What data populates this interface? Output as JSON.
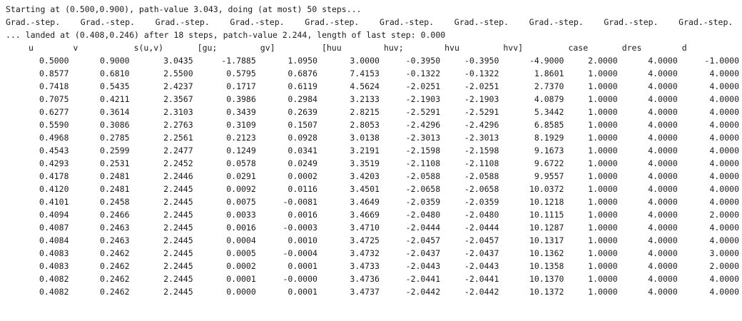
{
  "console": {
    "start_line": "Starting at (0.500,0.900), path-value 3.043, doing (at most) 50 steps...",
    "step_label": "Grad.-step.",
    "step_count": 10,
    "landed_line": "... landed at (0.408,0.246) after 18 steps, patch-value 2.244, length of last step: 0.000"
  },
  "table": {
    "headers": [
      "u",
      "v",
      "s(u,v)",
      "[gu;",
      "gv]",
      "[huu",
      "huv;",
      "hvu",
      "hvv]",
      "case",
      "dres",
      "d"
    ],
    "rows": [
      [
        "0.5000",
        "0.9000",
        "3.0435",
        "-1.7885",
        "1.0950",
        "3.0000",
        "-0.3950",
        "-0.3950",
        "-4.9000",
        "2.0000",
        "4.0000",
        "-1.0000"
      ],
      [
        "0.8577",
        "0.6810",
        "2.5500",
        "0.5795",
        "0.6876",
        "7.4153",
        "-0.1322",
        "-0.1322",
        "1.8601",
        "1.0000",
        "4.0000",
        "4.0000"
      ],
      [
        "0.7418",
        "0.5435",
        "2.4237",
        "0.1717",
        "0.6119",
        "4.5624",
        "-2.0251",
        "-2.0251",
        "2.7370",
        "1.0000",
        "4.0000",
        "4.0000"
      ],
      [
        "0.7075",
        "0.4211",
        "2.3567",
        "0.3986",
        "0.2984",
        "3.2133",
        "-2.1903",
        "-2.1903",
        "4.0879",
        "1.0000",
        "4.0000",
        "4.0000"
      ],
      [
        "0.6277",
        "0.3614",
        "2.3103",
        "0.3439",
        "0.2639",
        "2.8215",
        "-2.5291",
        "-2.5291",
        "5.3442",
        "1.0000",
        "4.0000",
        "4.0000"
      ],
      [
        "0.5590",
        "0.3086",
        "2.2763",
        "0.3109",
        "0.1507",
        "2.8053",
        "-2.4296",
        "-2.4296",
        "6.8585",
        "1.0000",
        "4.0000",
        "4.0000"
      ],
      [
        "0.4968",
        "0.2785",
        "2.2561",
        "0.2123",
        "0.0928",
        "3.0138",
        "-2.3013",
        "-2.3013",
        "8.1929",
        "1.0000",
        "4.0000",
        "4.0000"
      ],
      [
        "0.4543",
        "0.2599",
        "2.2477",
        "0.1249",
        "0.0341",
        "3.2191",
        "-2.1598",
        "-2.1598",
        "9.1673",
        "1.0000",
        "4.0000",
        "4.0000"
      ],
      [
        "0.4293",
        "0.2531",
        "2.2452",
        "0.0578",
        "0.0249",
        "3.3519",
        "-2.1108",
        "-2.1108",
        "9.6722",
        "1.0000",
        "4.0000",
        "4.0000"
      ],
      [
        "0.4178",
        "0.2481",
        "2.2446",
        "0.0291",
        "0.0002",
        "3.4203",
        "-2.0588",
        "-2.0588",
        "9.9557",
        "1.0000",
        "4.0000",
        "4.0000"
      ],
      [
        "0.4120",
        "0.2481",
        "2.2445",
        "0.0092",
        "0.0116",
        "3.4501",
        "-2.0658",
        "-2.0658",
        "10.0372",
        "1.0000",
        "4.0000",
        "4.0000"
      ],
      [
        "0.4101",
        "0.2458",
        "2.2445",
        "0.0075",
        "-0.0081",
        "3.4649",
        "-2.0359",
        "-2.0359",
        "10.1218",
        "1.0000",
        "4.0000",
        "4.0000"
      ],
      [
        "0.4094",
        "0.2466",
        "2.2445",
        "0.0033",
        "0.0016",
        "3.4669",
        "-2.0480",
        "-2.0480",
        "10.1115",
        "1.0000",
        "4.0000",
        "2.0000"
      ],
      [
        "0.4087",
        "0.2463",
        "2.2445",
        "0.0016",
        "-0.0003",
        "3.4710",
        "-2.0444",
        "-2.0444",
        "10.1287",
        "1.0000",
        "4.0000",
        "4.0000"
      ],
      [
        "0.4084",
        "0.2463",
        "2.2445",
        "0.0004",
        "0.0010",
        "3.4725",
        "-2.0457",
        "-2.0457",
        "10.1317",
        "1.0000",
        "4.0000",
        "4.0000"
      ],
      [
        "0.4083",
        "0.2462",
        "2.2445",
        "0.0005",
        "-0.0004",
        "3.4732",
        "-2.0437",
        "-2.0437",
        "10.1362",
        "1.0000",
        "4.0000",
        "3.0000"
      ],
      [
        "0.4083",
        "0.2462",
        "2.2445",
        "0.0002",
        "0.0001",
        "3.4733",
        "-2.0443",
        "-2.0443",
        "10.1358",
        "1.0000",
        "4.0000",
        "2.0000"
      ],
      [
        "0.4082",
        "0.2462",
        "2.2445",
        "0.0001",
        "-0.0000",
        "3.4736",
        "-2.0441",
        "-2.0441",
        "10.1370",
        "1.0000",
        "4.0000",
        "4.0000"
      ],
      [
        "0.4082",
        "0.2462",
        "2.2445",
        "0.0000",
        "0.0001",
        "3.4737",
        "-2.0442",
        "-2.0442",
        "10.1372",
        "1.0000",
        "4.0000",
        "4.0000"
      ]
    ]
  }
}
